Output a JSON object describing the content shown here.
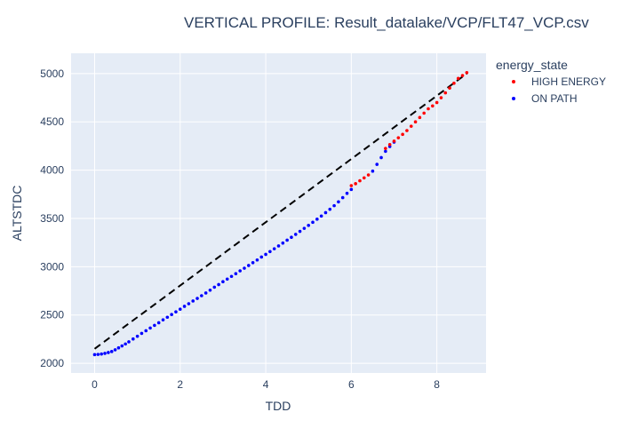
{
  "chart_data": {
    "type": "scatter",
    "title": "VERTICAL PROFILE: Result_datalake/VCP/FLT47_VCP.csv",
    "xlabel": "TDD",
    "ylabel": "ALTSTDC",
    "xlim": [
      -0.55,
      9.15
    ],
    "ylim": [
      1900,
      5210
    ],
    "xticks": [
      0,
      2,
      4,
      6,
      8
    ],
    "yticks": [
      2000,
      2500,
      3000,
      3500,
      4000,
      4500,
      5000
    ],
    "xtick_labels": [
      "0",
      "2",
      "4",
      "6",
      "8"
    ],
    "ytick_labels": [
      "2000",
      "2500",
      "3000",
      "3500",
      "4000",
      "4500",
      "5000"
    ],
    "grid": true,
    "legend": {
      "title": "energy_state",
      "placement": "right",
      "entries": [
        {
          "name": "HIGH ENERGY",
          "color": "#ff0000"
        },
        {
          "name": "ON PATH",
          "color": "#0000ff"
        }
      ]
    },
    "reference_line": {
      "style": "dashed",
      "color": "#000000",
      "x": [
        0,
        8.7
      ],
      "y": [
        2150,
        5000
      ]
    },
    "series": [
      {
        "name": "ON PATH",
        "color": "#0000ff",
        "points": [
          [
            0.0,
            2090
          ],
          [
            0.08,
            2092
          ],
          [
            0.16,
            2096
          ],
          [
            0.24,
            2103
          ],
          [
            0.32,
            2112
          ],
          [
            0.4,
            2122
          ],
          [
            0.48,
            2140
          ],
          [
            0.56,
            2160
          ],
          [
            0.64,
            2180
          ],
          [
            0.72,
            2200
          ],
          [
            0.8,
            2222
          ],
          [
            0.9,
            2252
          ],
          [
            1.0,
            2280
          ],
          [
            1.1,
            2310
          ],
          [
            1.2,
            2337
          ],
          [
            1.3,
            2365
          ],
          [
            1.4,
            2393
          ],
          [
            1.5,
            2420
          ],
          [
            1.6,
            2450
          ],
          [
            1.7,
            2477
          ],
          [
            1.8,
            2505
          ],
          [
            1.9,
            2533
          ],
          [
            2.0,
            2560
          ],
          [
            2.1,
            2590
          ],
          [
            2.2,
            2617
          ],
          [
            2.3,
            2645
          ],
          [
            2.4,
            2672
          ],
          [
            2.5,
            2700
          ],
          [
            2.6,
            2728
          ],
          [
            2.7,
            2757
          ],
          [
            2.8,
            2788
          ],
          [
            2.9,
            2815
          ],
          [
            3.0,
            2845
          ],
          [
            3.1,
            2872
          ],
          [
            3.2,
            2900
          ],
          [
            3.3,
            2928
          ],
          [
            3.4,
            2957
          ],
          [
            3.5,
            2985
          ],
          [
            3.6,
            3013
          ],
          [
            3.7,
            3042
          ],
          [
            3.8,
            3070
          ],
          [
            3.9,
            3100
          ],
          [
            4.0,
            3128
          ],
          [
            4.1,
            3157
          ],
          [
            4.2,
            3186
          ],
          [
            4.3,
            3215
          ],
          [
            4.4,
            3245
          ],
          [
            4.5,
            3275
          ],
          [
            4.6,
            3305
          ],
          [
            4.7,
            3335
          ],
          [
            4.8,
            3366
          ],
          [
            4.9,
            3397
          ],
          [
            5.0,
            3428
          ],
          [
            5.1,
            3460
          ],
          [
            5.2,
            3492
          ],
          [
            5.3,
            3525
          ],
          [
            5.4,
            3560
          ],
          [
            5.5,
            3595
          ],
          [
            5.6,
            3632
          ],
          [
            5.7,
            3672
          ],
          [
            5.8,
            3715
          ],
          [
            5.9,
            3760
          ],
          [
            6.0,
            3800
          ],
          [
            6.5,
            3990
          ],
          [
            6.6,
            4060
          ],
          [
            6.7,
            4130
          ],
          [
            6.8,
            4195
          ],
          [
            6.9,
            4245
          ],
          [
            7.0,
            4290
          ]
        ]
      },
      {
        "name": "HIGH ENERGY",
        "color": "#ff0000",
        "points": [
          [
            6.0,
            3840
          ],
          [
            6.1,
            3860
          ],
          [
            6.2,
            3890
          ],
          [
            6.3,
            3920
          ],
          [
            6.4,
            3950
          ],
          [
            6.8,
            4225
          ],
          [
            6.9,
            4265
          ],
          [
            7.0,
            4300
          ],
          [
            7.1,
            4335
          ],
          [
            7.2,
            4370
          ],
          [
            7.3,
            4410
          ],
          [
            7.4,
            4455
          ],
          [
            7.5,
            4500
          ],
          [
            7.6,
            4545
          ],
          [
            7.7,
            4590
          ],
          [
            7.8,
            4635
          ],
          [
            7.9,
            4665
          ],
          [
            8.0,
            4700
          ],
          [
            8.1,
            4750
          ],
          [
            8.2,
            4800
          ],
          [
            8.3,
            4850
          ],
          [
            8.4,
            4900
          ],
          [
            8.5,
            4950
          ],
          [
            8.6,
            4980
          ],
          [
            8.7,
            5010
          ]
        ]
      }
    ]
  }
}
